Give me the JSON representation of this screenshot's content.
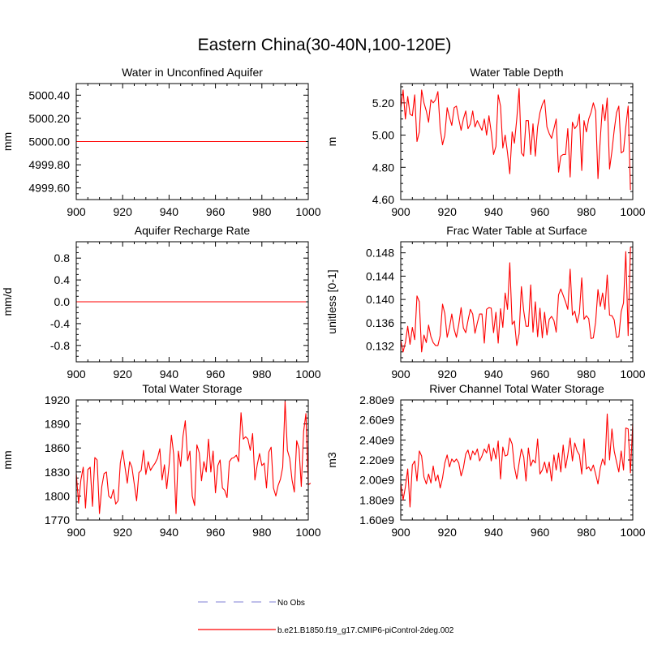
{
  "figure": {
    "title": "Eastern China(30-40N,100-120E)",
    "colors": {
      "series": "#ff0000",
      "obs": "#9999dd",
      "frame": "#000000"
    }
  },
  "legend": {
    "items": [
      {
        "label": "No Obs",
        "style": "dashed",
        "color": "#9999dd"
      },
      {
        "label": "b.e21.B1850.f19_g17.CMIP6-piControl-2deg.002",
        "style": "solid",
        "color": "#ff0000"
      }
    ]
  },
  "chart_data": [
    {
      "type": "line",
      "title": "Water in Unconfined Aquifer",
      "xlabel": "",
      "ylabel": "mm",
      "xlim": [
        900,
        1000
      ],
      "ylim": [
        4999.5,
        5000.5
      ],
      "xticks": [
        900,
        920,
        940,
        960,
        980,
        1000
      ],
      "xtick_labels": [
        "900",
        "920",
        "940",
        "960",
        "980",
        "1000"
      ],
      "yticks": [
        4999.6,
        4999.8,
        5000.0,
        5000.2,
        5000.4
      ],
      "ytick_labels": [
        "4999.60",
        "4999.80",
        "5000.00",
        "5000.20",
        "5000.40"
      ],
      "series": [
        {
          "x": [
            900,
            999
          ],
          "values": [
            5000.0,
            5000.0
          ]
        }
      ]
    },
    {
      "type": "line",
      "title": "Water Table Depth",
      "xlabel": "",
      "ylabel": "m",
      "xlim": [
        900,
        1000
      ],
      "ylim": [
        4.6,
        5.32
      ],
      "xticks": [
        900,
        920,
        940,
        960,
        980,
        1000
      ],
      "xtick_labels": [
        "900",
        "920",
        "940",
        "960",
        "980",
        "1000"
      ],
      "yticks": [
        4.6,
        4.8,
        5.0,
        5.2
      ],
      "ytick_labels": [
        "4.60",
        "4.80",
        "5.00",
        "5.20"
      ],
      "series": [
        {
          "x_start": 900,
          "values": [
            5.17,
            5.28,
            5.1,
            5.24,
            5.13,
            5.12,
            5.25,
            4.96,
            5.02,
            5.28,
            5.2,
            5.15,
            5.08,
            5.22,
            5.2,
            5.22,
            5.27,
            5.04,
            4.94,
            5.0,
            5.17,
            5.11,
            5.06,
            5.17,
            5.18,
            5.1,
            5.03,
            5.1,
            5.15,
            5.04,
            5.07,
            5.15,
            5.05,
            5.09,
            5.06,
            5.03,
            5.1,
            5.0,
            5.12,
            5.02,
            4.88,
            4.93,
            5.25,
            5.18,
            4.92,
            5.0,
            4.89,
            4.76,
            5.02,
            4.95,
            5.1,
            5.29,
            4.89,
            4.87,
            5.09,
            5.09,
            4.88,
            5.07,
            4.87,
            5.05,
            5.14,
            5.19,
            5.22,
            5.05,
            5.01,
            4.98,
            5.04,
            5.1,
            4.77,
            4.87,
            4.88,
            4.88,
            5.04,
            4.74,
            5.08,
            5.04,
            5.06,
            5.13,
            4.78,
            5.09,
            5.02,
            5.1,
            5.14,
            5.2,
            5.15,
            4.73,
            4.98,
            5.19,
            5.09,
            5.23,
            4.79,
            4.9,
            5.03,
            5.14,
            5.18,
            4.89,
            4.9,
            5.05,
            5.18,
            4.66
          ]
        }
      ]
    },
    {
      "type": "line",
      "title": "Aquifer Recharge Rate",
      "xlabel": "",
      "ylabel": "mm/d",
      "xlim": [
        900,
        1000
      ],
      "ylim": [
        -1.1,
        1.1
      ],
      "xticks": [
        900,
        920,
        940,
        960,
        980,
        1000
      ],
      "xtick_labels": [
        "900",
        "920",
        "940",
        "960",
        "980",
        "1000"
      ],
      "yticks": [
        -0.8,
        -0.4,
        0.0,
        0.4,
        0.8
      ],
      "ytick_labels": [
        "-0.8",
        "-0.4",
        "0.0",
        "0.4",
        "0.8"
      ],
      "series": [
        {
          "x": [
            900,
            999
          ],
          "values": [
            0.0,
            0.0
          ]
        }
      ]
    },
    {
      "type": "line",
      "title": "Frac Water Table at Surface",
      "xlabel": "",
      "ylabel": "unitless [0-1]",
      "xlim": [
        900,
        1000
      ],
      "ylim": [
        0.1293,
        0.1499
      ],
      "xticks": [
        900,
        920,
        940,
        960,
        980,
        1000
      ],
      "xtick_labels": [
        "900",
        "920",
        "940",
        "960",
        "980",
        "1000"
      ],
      "yticks": [
        0.132,
        0.136,
        0.14,
        0.144,
        0.148
      ],
      "ytick_labels": [
        "0.132",
        "0.136",
        "0.140",
        "0.144",
        "0.148"
      ],
      "series": [
        {
          "x_start": 900,
          "values": [
            0.133,
            0.131,
            0.1326,
            0.1354,
            0.1323,
            0.1352,
            0.1331,
            0.1406,
            0.1396,
            0.131,
            0.1339,
            0.1326,
            0.1356,
            0.1336,
            0.1326,
            0.1321,
            0.1321,
            0.1338,
            0.1392,
            0.1376,
            0.1335,
            0.1352,
            0.1375,
            0.1349,
            0.1335,
            0.1357,
            0.1386,
            0.1351,
            0.1343,
            0.1364,
            0.1383,
            0.1375,
            0.1342,
            0.136,
            0.1375,
            0.1375,
            0.1325,
            0.1383,
            0.1386,
            0.1385,
            0.1343,
            0.1378,
            0.1325,
            0.1384,
            0.1352,
            0.1411,
            0.1383,
            0.1463,
            0.1357,
            0.1363,
            0.1321,
            0.1341,
            0.1422,
            0.138,
            0.1354,
            0.1354,
            0.1425,
            0.1344,
            0.1396,
            0.1336,
            0.1385,
            0.1334,
            0.1378,
            0.1339,
            0.1366,
            0.1371,
            0.1364,
            0.1344,
            0.1408,
            0.1418,
            0.1407,
            0.1396,
            0.1383,
            0.1452,
            0.1373,
            0.138,
            0.136,
            0.1377,
            0.1437,
            0.1366,
            0.1372,
            0.1367,
            0.1333,
            0.1334,
            0.1361,
            0.1417,
            0.1388,
            0.1411,
            0.1383,
            0.1442,
            0.1373,
            0.1372,
            0.1365,
            0.1335,
            0.1336,
            0.1379,
            0.1394,
            0.1482,
            0.1338,
            0.149
          ]
        }
      ]
    },
    {
      "type": "line",
      "title": "Total Water Storage",
      "xlabel": "",
      "ylabel": "mm",
      "xlim": [
        900,
        1000
      ],
      "ylim": [
        1770,
        1920
      ],
      "xticks": [
        900,
        920,
        940,
        960,
        980,
        1000
      ],
      "xtick_labels": [
        "900",
        "920",
        "940",
        "960",
        "980",
        "1000"
      ],
      "yticks": [
        1770,
        1800,
        1830,
        1860,
        1890,
        1920
      ],
      "ytick_labels": [
        "1770",
        "1800",
        "1830",
        "1860",
        "1890",
        "1920"
      ],
      "series": [
        {
          "x_start": 900,
          "values": [
            1828,
            1791,
            1820,
            1836,
            1785,
            1833,
            1836,
            1787,
            1848,
            1845,
            1778,
            1812,
            1828,
            1830,
            1800,
            1797,
            1808,
            1790,
            1794,
            1841,
            1857,
            1836,
            1816,
            1843,
            1836,
            1815,
            1794,
            1829,
            1832,
            1857,
            1827,
            1843,
            1832,
            1837,
            1841,
            1847,
            1859,
            1820,
            1839,
            1809,
            1838,
            1876,
            1852,
            1778,
            1856,
            1837,
            1875,
            1894,
            1844,
            1856,
            1800,
            1788,
            1864,
            1854,
            1819,
            1843,
            1830,
            1871,
            1830,
            1856,
            1804,
            1838,
            1845,
            1810,
            1807,
            1798,
            1843,
            1847,
            1848,
            1851,
            1843,
            1904,
            1871,
            1874,
            1871,
            1857,
            1878,
            1820,
            1839,
            1853,
            1838,
            1841,
            1810,
            1855,
            1861,
            1810,
            1800,
            1813,
            1821,
            1836,
            1918,
            1857,
            1847,
            1820,
            1805,
            1869,
            1859,
            1812,
            1881,
            1903,
            1814,
            1816
          ]
        }
      ]
    },
    {
      "type": "line",
      "title": "River Channel Total Water Storage",
      "xlabel": "",
      "ylabel": "m3",
      "xlim": [
        900,
        1000
      ],
      "ylim": [
        1600000000.0,
        2800000000.0
      ],
      "xticks": [
        900,
        920,
        940,
        960,
        980,
        1000
      ],
      "xtick_labels": [
        "900",
        "920",
        "940",
        "960",
        "980",
        "1000"
      ],
      "yticks": [
        1600000000.0,
        1800000000.0,
        2000000000.0,
        2200000000.0,
        2400000000.0,
        2600000000.0,
        2800000000.0
      ],
      "ytick_labels": [
        "1.60e9",
        "1.80e9",
        "2.00e9",
        "2.20e9",
        "2.40e9",
        "2.60e9",
        "2.80e9"
      ],
      "series": [
        {
          "x_start": 900,
          "values": [
            1970000000.0,
            1800000000.0,
            1930000000.0,
            2110000000.0,
            1730000000.0,
            2150000000.0,
            2190000000.0,
            1990000000.0,
            2290000000.0,
            2240000000.0,
            2030000000.0,
            1960000000.0,
            2060000000.0,
            1970000000.0,
            2140000000.0,
            1990000000.0,
            2050000000.0,
            1920000000.0,
            2020000000.0,
            2170000000.0,
            2250000000.0,
            2130000000.0,
            2210000000.0,
            2180000000.0,
            2210000000.0,
            2170000000.0,
            2040000000.0,
            2120000000.0,
            2260000000.0,
            2300000000.0,
            2200000000.0,
            2290000000.0,
            2250000000.0,
            2310000000.0,
            2190000000.0,
            2240000000.0,
            2310000000.0,
            2270000000.0,
            2360000000.0,
            2190000000.0,
            2320000000.0,
            2210000000.0,
            2390000000.0,
            2010000000.0,
            2330000000.0,
            2240000000.0,
            2250000000.0,
            2420000000.0,
            2360000000.0,
            2130000000.0,
            2010000000.0,
            2170000000.0,
            2310000000.0,
            2230000000.0,
            1990000000.0,
            2320000000.0,
            2140000000.0,
            2200000000.0,
            2170000000.0,
            2410000000.0,
            2060000000.0,
            2100000000.0,
            2180000000.0,
            2070000000.0,
            2180000000.0,
            1990000000.0,
            2250000000.0,
            2100000000.0,
            2270000000.0,
            2080000000.0,
            2350000000.0,
            2120000000.0,
            2250000000.0,
            2420000000.0,
            2190000000.0,
            2370000000.0,
            2290000000.0,
            2250000000.0,
            2060000000.0,
            2410000000.0,
            2110000000.0,
            2130000000.0,
            2090000000.0,
            2150000000.0,
            2060000000.0,
            1960000000.0,
            2120000000.0,
            2210000000.0,
            2150000000.0,
            2660000000.0,
            2200000000.0,
            2510000000.0,
            2290000000.0,
            2180000000.0,
            2080000000.0,
            2290000000.0,
            2100000000.0,
            2520000000.0,
            2510000000.0,
            2070000000.0,
            2570000000.0
          ]
        }
      ]
    }
  ]
}
